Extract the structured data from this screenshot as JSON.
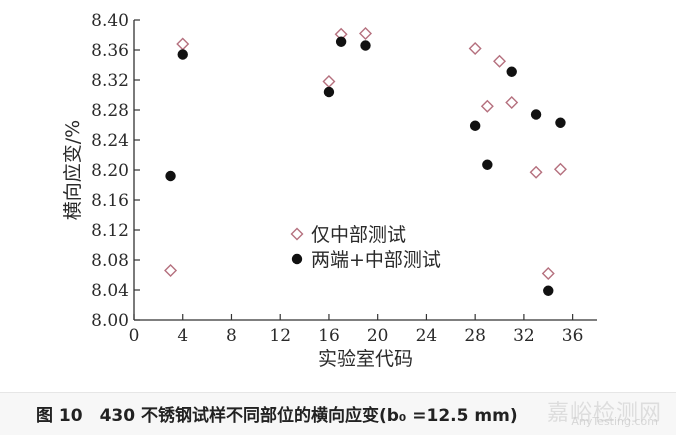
{
  "chart_data": {
    "type": "scatter",
    "xlabel": "实验室代码",
    "ylabel": "横向应变/%",
    "xlim": [
      0,
      38
    ],
    "ylim": [
      8.0,
      8.4
    ],
    "x_ticks": [
      "0",
      "4",
      "8",
      "12",
      "16",
      "20",
      "24",
      "28",
      "32",
      "36"
    ],
    "y_ticks": [
      "8.00",
      "8.04",
      "8.08",
      "8.12",
      "8.16",
      "8.20",
      "8.24",
      "8.28",
      "8.32",
      "8.36",
      "8.40"
    ],
    "grid": false,
    "legend_position": "center",
    "series": [
      {
        "name": "仅中部测试",
        "marker": "open-diamond",
        "color": "#b5707e",
        "points": [
          [
            3,
            8.066
          ],
          [
            4,
            8.368
          ],
          [
            16,
            8.318
          ],
          [
            17,
            8.381
          ],
          [
            19,
            8.382
          ],
          [
            28,
            8.362
          ],
          [
            29,
            8.285
          ],
          [
            30,
            8.345
          ],
          [
            31,
            8.29
          ],
          [
            33,
            8.197
          ],
          [
            34,
            8.062
          ],
          [
            35,
            8.201
          ]
        ]
      },
      {
        "name": "两端+中部测试",
        "marker": "filled-circle",
        "color": "#111111",
        "points": [
          [
            3,
            8.192
          ],
          [
            4,
            8.354
          ],
          [
            16,
            8.304
          ],
          [
            17,
            8.371
          ],
          [
            19,
            8.366
          ],
          [
            28,
            8.259
          ],
          [
            29,
            8.207
          ],
          [
            31,
            8.331
          ],
          [
            33,
            8.274
          ],
          [
            34,
            8.039
          ],
          [
            35,
            8.263
          ]
        ]
      }
    ]
  },
  "caption": "图 10　430 不锈钢试样不同部位的横向应变(b₀ =12.5 mm)",
  "watermark": "嘉峪检测网",
  "watermark_url": "AnyTesting.com"
}
